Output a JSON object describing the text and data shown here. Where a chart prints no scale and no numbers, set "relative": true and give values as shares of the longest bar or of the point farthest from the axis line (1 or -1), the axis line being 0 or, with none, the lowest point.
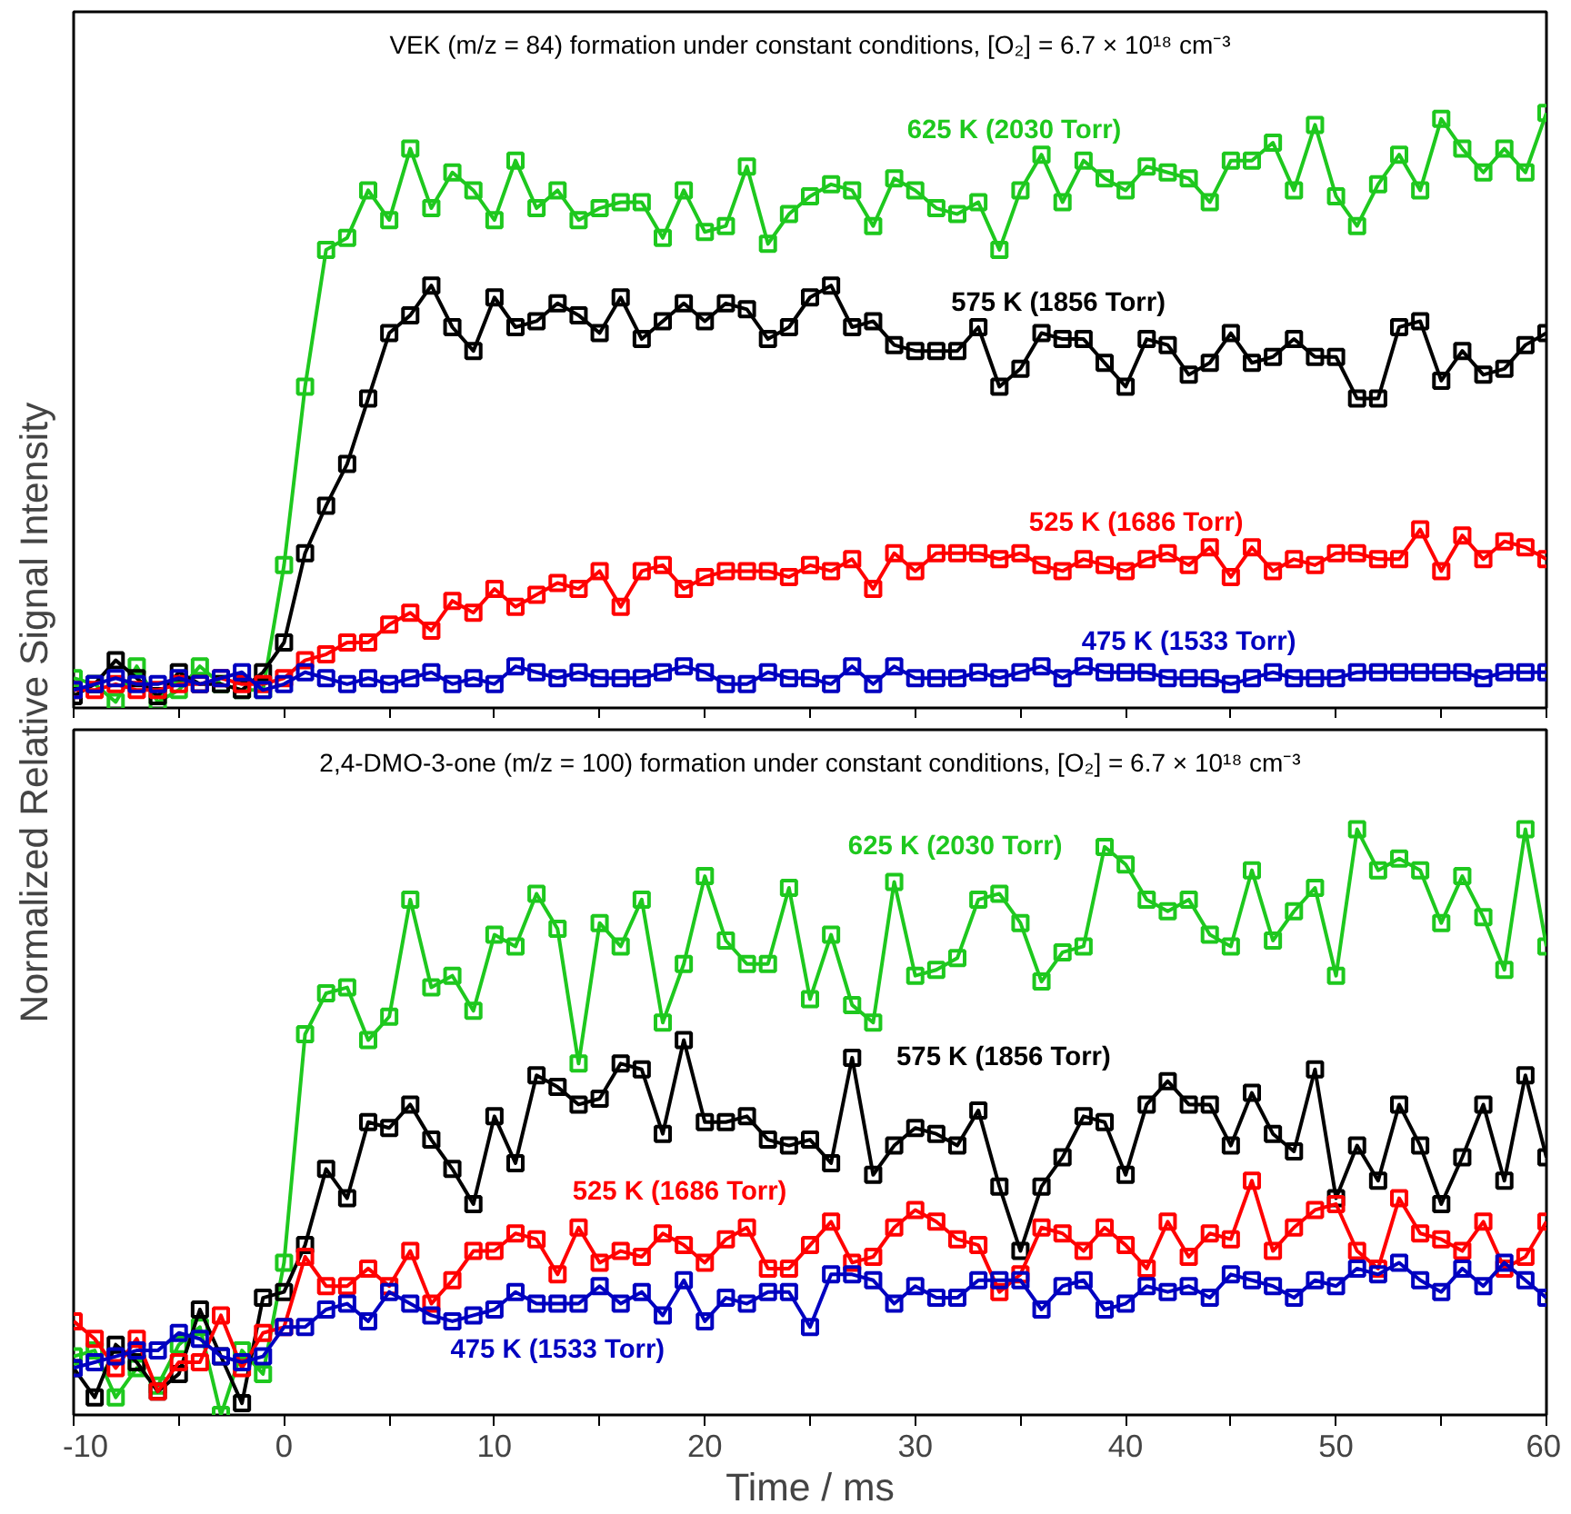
{
  "chart_data": [
    {
      "type": "line",
      "title": "VEK (m/z = 84) formation under constant conditions, [O₂] = 6.7 × 10¹⁸ cm⁻³",
      "ylabel": "Normalized Relative Signal Intensity",
      "relative": true,
      "marker": "square",
      "line_style": "solid",
      "grid": false,
      "tick_labels": false,
      "x": [
        -10,
        -9,
        -8,
        -7,
        -6,
        -5,
        -4,
        -3,
        -2,
        -1,
        0,
        1,
        2,
        3,
        4,
        5,
        6,
        7,
        8,
        9,
        10,
        11,
        12,
        13,
        14,
        15,
        16,
        17,
        18,
        19,
        20,
        21,
        22,
        23,
        24,
        25,
        26,
        27,
        28,
        29,
        30,
        31,
        32,
        33,
        34,
        35,
        36,
        37,
        38,
        39,
        40,
        41,
        42,
        43,
        44,
        45,
        46,
        47,
        48,
        49,
        50,
        51,
        52,
        53,
        54,
        55,
        56,
        57,
        58,
        59,
        60
      ],
      "xlim": [
        -10,
        60
      ],
      "xticks": [
        -10,
        {
          "value": -5,
          "label": null
        },
        0,
        {
          "value": 5,
          "label": null
        },
        10,
        {
          "value": 15,
          "label": null
        },
        20,
        {
          "value": 25,
          "label": null
        },
        30,
        {
          "value": 35,
          "label": null
        },
        40,
        {
          "value": 45,
          "label": null
        },
        50,
        {
          "value": 55,
          "label": null
        },
        60
      ],
      "series": [
        {
          "name": "625 K (2030 Torr)",
          "color": "#1ec81e",
          "values": [
            0.05,
            0.04,
            0.01,
            0.07,
            0.01,
            0.03,
            0.07,
            0.04,
            0.03,
            0.03,
            0.24,
            0.54,
            0.77,
            0.79,
            0.87,
            0.82,
            0.94,
            0.84,
            0.9,
            0.87,
            0.82,
            0.92,
            0.84,
            0.87,
            0.82,
            0.84,
            0.85,
            0.85,
            0.79,
            0.87,
            0.8,
            0.81,
            0.91,
            0.78,
            0.83,
            0.86,
            0.88,
            0.87,
            0.81,
            0.89,
            0.87,
            0.84,
            0.83,
            0.85,
            0.77,
            0.87,
            0.93,
            0.85,
            0.92,
            0.89,
            0.87,
            0.91,
            0.9,
            0.89,
            0.85,
            0.92,
            0.92,
            0.95,
            0.87,
            0.98,
            0.86,
            0.81,
            0.88,
            0.93,
            0.87,
            0.99,
            0.94,
            0.9,
            0.94,
            0.9,
            1.0
          ]
        },
        {
          "name": "575 K (1856 Torr)",
          "color": "#000000",
          "values": [
            0.02,
            0.04,
            0.08,
            0.05,
            0.02,
            0.06,
            0.04,
            0.04,
            0.03,
            0.06,
            0.11,
            0.26,
            0.34,
            0.41,
            0.52,
            0.63,
            0.66,
            0.71,
            0.64,
            0.6,
            0.69,
            0.64,
            0.65,
            0.68,
            0.66,
            0.63,
            0.69,
            0.62,
            0.65,
            0.68,
            0.65,
            0.68,
            0.67,
            0.62,
            0.64,
            0.69,
            0.71,
            0.64,
            0.65,
            0.61,
            0.6,
            0.6,
            0.6,
            0.64,
            0.54,
            0.57,
            0.63,
            0.62,
            0.62,
            0.58,
            0.54,
            0.62,
            0.61,
            0.56,
            0.58,
            0.63,
            0.58,
            0.59,
            0.62,
            0.59,
            0.59,
            0.52,
            0.52,
            0.64,
            0.65,
            0.55,
            0.6,
            0.56,
            0.57,
            0.61,
            0.63
          ]
        },
        {
          "name": "525 K (1686 Torr)",
          "color": "#ff0000",
          "values": [
            0.03,
            0.03,
            0.04,
            0.03,
            0.03,
            0.04,
            0.04,
            0.05,
            0.04,
            0.04,
            0.05,
            0.08,
            0.09,
            0.11,
            0.11,
            0.14,
            0.16,
            0.13,
            0.18,
            0.16,
            0.2,
            0.17,
            0.19,
            0.21,
            0.2,
            0.23,
            0.17,
            0.23,
            0.24,
            0.2,
            0.22,
            0.23,
            0.23,
            0.23,
            0.22,
            0.24,
            0.23,
            0.25,
            0.2,
            0.26,
            0.23,
            0.26,
            0.26,
            0.26,
            0.25,
            0.26,
            0.24,
            0.23,
            0.25,
            0.24,
            0.23,
            0.25,
            0.26,
            0.24,
            0.27,
            0.22,
            0.27,
            0.23,
            0.25,
            0.24,
            0.26,
            0.26,
            0.25,
            0.25,
            0.3,
            0.23,
            0.29,
            0.25,
            0.28,
            0.27,
            0.25
          ]
        },
        {
          "name": "475 K (1533 Torr)",
          "color": "#0000c0",
          "values": [
            0.03,
            0.04,
            0.05,
            0.04,
            0.04,
            0.05,
            0.04,
            0.05,
            0.06,
            0.03,
            0.04,
            0.06,
            0.05,
            0.04,
            0.05,
            0.04,
            0.05,
            0.06,
            0.04,
            0.05,
            0.04,
            0.07,
            0.06,
            0.05,
            0.06,
            0.05,
            0.05,
            0.05,
            0.06,
            0.07,
            0.06,
            0.04,
            0.04,
            0.06,
            0.05,
            0.05,
            0.04,
            0.07,
            0.04,
            0.07,
            0.05,
            0.05,
            0.05,
            0.06,
            0.05,
            0.06,
            0.07,
            0.05,
            0.07,
            0.06,
            0.06,
            0.06,
            0.05,
            0.05,
            0.05,
            0.04,
            0.05,
            0.06,
            0.05,
            0.05,
            0.05,
            0.06,
            0.06,
            0.06,
            0.06,
            0.06,
            0.06,
            0.05,
            0.06,
            0.06,
            0.06
          ]
        }
      ]
    },
    {
      "type": "line",
      "title": "2,4-DMO-3-one (m/z = 100) formation under constant conditions, [O₂] = 6.7 × 10¹⁸ cm⁻³",
      "xlabel": "Time / ms",
      "relative": true,
      "marker": "square",
      "line_style": "solid",
      "grid": false,
      "tick_labels": "x",
      "x": [
        -10,
        -9,
        -8,
        -7,
        -6,
        -5,
        -4,
        -3,
        -2,
        -1,
        0,
        1,
        2,
        3,
        4,
        5,
        6,
        7,
        8,
        9,
        10,
        11,
        12,
        13,
        14,
        15,
        16,
        17,
        18,
        19,
        20,
        21,
        22,
        23,
        24,
        25,
        26,
        27,
        28,
        29,
        30,
        31,
        32,
        33,
        34,
        35,
        36,
        37,
        38,
        39,
        40,
        41,
        42,
        43,
        44,
        45,
        46,
        47,
        48,
        49,
        50,
        51,
        52,
        53,
        54,
        55,
        56,
        57,
        58,
        59,
        60
      ],
      "xlim": [
        -10,
        60
      ],
      "xticks": [
        -10,
        {
          "value": -5,
          "label": null
        },
        0,
        {
          "value": 5,
          "label": null
        },
        10,
        {
          "value": 15,
          "label": null
        },
        20,
        {
          "value": 25,
          "label": null
        },
        30,
        {
          "value": 35,
          "label": null
        },
        40,
        {
          "value": 45,
          "label": null
        },
        50,
        {
          "value": 55,
          "label": null
        },
        60
      ],
      "series": [
        {
          "name": "625 K (2030 Torr)",
          "color": "#1ec81e",
          "values": [
            0.1,
            0.11,
            0.03,
            0.08,
            0.05,
            0.12,
            0.15,
            0,
            0.11,
            0.07,
            0.26,
            0.65,
            0.72,
            0.73,
            0.64,
            0.68,
            0.88,
            0.73,
            0.75,
            0.69,
            0.82,
            0.8,
            0.89,
            0.83,
            0.6,
            0.84,
            0.8,
            0.88,
            0.67,
            0.77,
            0.92,
            0.81,
            0.77,
            0.77,
            0.9,
            0.71,
            0.82,
            0.7,
            0.67,
            0.91,
            0.75,
            0.76,
            0.78,
            0.88,
            0.89,
            0.84,
            0.74,
            0.79,
            0.8,
            0.97,
            0.94,
            0.88,
            0.86,
            0.88,
            0.82,
            0.8,
            0.93,
            0.81,
            0.86,
            0.9,
            0.75,
            1.0,
            0.93,
            0.95,
            0.93,
            0.84,
            0.92,
            0.85,
            0.76,
            1.0,
            0.8
          ]
        },
        {
          "name": "575 K (1856 Torr)",
          "color": "#000000",
          "values": [
            0.08,
            0.03,
            0.12,
            0.09,
            0.04,
            0.07,
            0.18,
            0.1,
            0.02,
            0.2,
            0.21,
            0.29,
            0.42,
            0.37,
            0.5,
            0.49,
            0.53,
            0.47,
            0.42,
            0.36,
            0.51,
            0.43,
            0.58,
            0.56,
            0.53,
            0.54,
            0.6,
            0.59,
            0.48,
            0.64,
            0.5,
            0.5,
            0.51,
            0.47,
            0.46,
            0.47,
            0.43,
            0.61,
            0.41,
            0.46,
            0.49,
            0.48,
            0.46,
            0.52,
            0.39,
            0.28,
            0.39,
            0.44,
            0.51,
            0.5,
            0.41,
            0.53,
            0.57,
            0.53,
            0.53,
            0.46,
            0.55,
            0.48,
            0.45,
            0.59,
            0.37,
            0.46,
            0.4,
            0.53,
            0.46,
            0.36,
            0.44,
            0.53,
            0.4,
            0.58,
            0.44
          ]
        },
        {
          "name": "525 K (1686 Torr)",
          "color": "#ff0000",
          "values": [
            0.16,
            0.13,
            0.08,
            0.13,
            0.04,
            0.09,
            0.09,
            0.17,
            0.08,
            0.14,
            0.15,
            0.27,
            0.22,
            0.22,
            0.25,
            0.22,
            0.28,
            0.19,
            0.23,
            0.28,
            0.28,
            0.31,
            0.3,
            0.24,
            0.32,
            0.26,
            0.28,
            0.27,
            0.31,
            0.29,
            0.26,
            0.3,
            0.32,
            0.25,
            0.25,
            0.29,
            0.33,
            0.26,
            0.27,
            0.32,
            0.35,
            0.33,
            0.3,
            0.29,
            0.21,
            0.24,
            0.32,
            0.31,
            0.28,
            0.32,
            0.29,
            0.25,
            0.33,
            0.27,
            0.31,
            0.3,
            0.4,
            0.28,
            0.32,
            0.35,
            0.36,
            0.28,
            0.25,
            0.37,
            0.31,
            0.3,
            0.28,
            0.33,
            0.25,
            0.27,
            0.33
          ]
        },
        {
          "name": "475 K (1533 Torr)",
          "color": "#0000c0",
          "values": [
            0.08,
            0.09,
            0.1,
            0.11,
            0.11,
            0.14,
            0.13,
            0.1,
            0.09,
            0.1,
            0.15,
            0.15,
            0.18,
            0.19,
            0.16,
            0.21,
            0.19,
            0.17,
            0.16,
            0.17,
            0.18,
            0.21,
            0.19,
            0.19,
            0.19,
            0.22,
            0.19,
            0.21,
            0.17,
            0.23,
            0.16,
            0.2,
            0.19,
            0.21,
            0.21,
            0.15,
            0.24,
            0.24,
            0.23,
            0.19,
            0.22,
            0.2,
            0.2,
            0.23,
            0.23,
            0.23,
            0.18,
            0.22,
            0.23,
            0.18,
            0.19,
            0.22,
            0.21,
            0.22,
            0.2,
            0.24,
            0.23,
            0.22,
            0.2,
            0.23,
            0.22,
            0.25,
            0.24,
            0.26,
            0.23,
            0.21,
            0.25,
            0.22,
            0.26,
            0.23,
            0.2
          ]
        }
      ]
    }
  ]
}
